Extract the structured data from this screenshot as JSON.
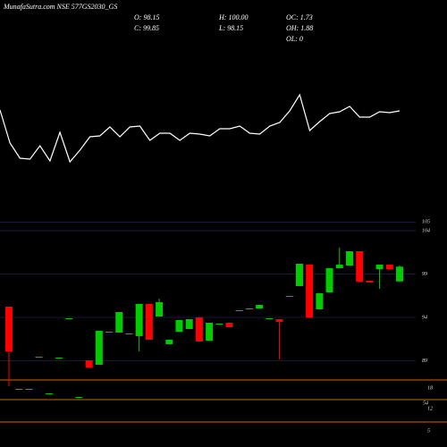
{
  "header": {
    "title": "MunafaSutra.com NSE 577GS2030_GS",
    "ohlc_labels": [
      "O: 98.15",
      "H: 100.00",
      "OC: 1.73",
      "C: 99.85",
      "L: 98.15",
      "OH: 1.88",
      "OL: 0"
    ]
  },
  "chart_data": [
    {
      "type": "line",
      "color": "#ffffff",
      "values": [
        77,
        40,
        23,
        22,
        37,
        20,
        52,
        19,
        32,
        47,
        48,
        58,
        47,
        58,
        59,
        43,
        51,
        51,
        43,
        51,
        50,
        48,
        56,
        56,
        59,
        51,
        50,
        59,
        63,
        76,
        94,
        54,
        64,
        73,
        75,
        81,
        69,
        69,
        75,
        74,
        76
      ],
      "ylim": [
        0,
        100
      ]
    },
    {
      "type": "candlestick",
      "up_color": "#00cc00",
      "down_color": "#ff0000",
      "open": [
        95.24,
        85.75,
        85.75,
        89.46,
        85.24,
        89.36,
        93.9,
        84.82,
        89.05,
        88.54,
        92.35,
        92.25,
        92.14,
        91.84,
        95.55,
        94.1,
        90.91,
        92.35,
        92.66,
        94.0,
        91.32,
        93.28,
        93.38,
        94.82,
        94.93,
        95.03,
        93.9,
        93.79,
        96.47,
        97.61,
        100.08,
        94.93,
        96.89,
        99.67,
        99.98,
        101.63,
        98.23,
        99.57,
        100.08,
        98.15
      ],
      "high": [
        95.24,
        85.75,
        85.75,
        89.46,
        85.24,
        89.36,
        93.9,
        84.82,
        89.05,
        92.45,
        92.35,
        94.62,
        92.14,
        95.55,
        95.55,
        96.16,
        91.42,
        93.69,
        93.79,
        94.0,
        93.38,
        93.28,
        93.38,
        94.82,
        95.03,
        95.44,
        93.9,
        93.79,
        96.47,
        100.19,
        100.08,
        96.78,
        99.67,
        102.04,
        101.63,
        101.63,
        98.23,
        100.08,
        100.08,
        100.0
      ],
      "low": [
        86.06,
        85.75,
        85.75,
        89.46,
        85.24,
        89.36,
        93.9,
        84.82,
        88.23,
        88.54,
        92.35,
        92.25,
        92.14,
        90.08,
        91.42,
        94.1,
        90.91,
        92.35,
        92.66,
        91.22,
        91.32,
        93.28,
        92.87,
        94.82,
        94.93,
        95.03,
        93.9,
        89.15,
        96.47,
        97.61,
        94.0,
        94.93,
        96.89,
        99.67,
        99.98,
        98.12,
        98.02,
        97.3,
        99.57,
        98.15
      ],
      "close": [
        90.08,
        85.75,
        85.75,
        89.46,
        85.24,
        89.36,
        93.9,
        84.82,
        88.23,
        92.45,
        92.35,
        94.62,
        92.14,
        95.55,
        91.42,
        95.75,
        91.42,
        93.69,
        93.79,
        91.22,
        93.38,
        93.28,
        92.87,
        94.82,
        95.03,
        95.44,
        93.9,
        93.48,
        96.47,
        100.19,
        94.0,
        96.78,
        99.67,
        100.08,
        101.63,
        98.12,
        98.02,
        100.08,
        99.57,
        99.85
      ],
      "ylim": [
        79.05,
        105.86
      ],
      "yticks": [
        105,
        104,
        99,
        94,
        89
      ],
      "annotations": [
        "18",
        "54",
        "12",
        "5"
      ]
    }
  ]
}
